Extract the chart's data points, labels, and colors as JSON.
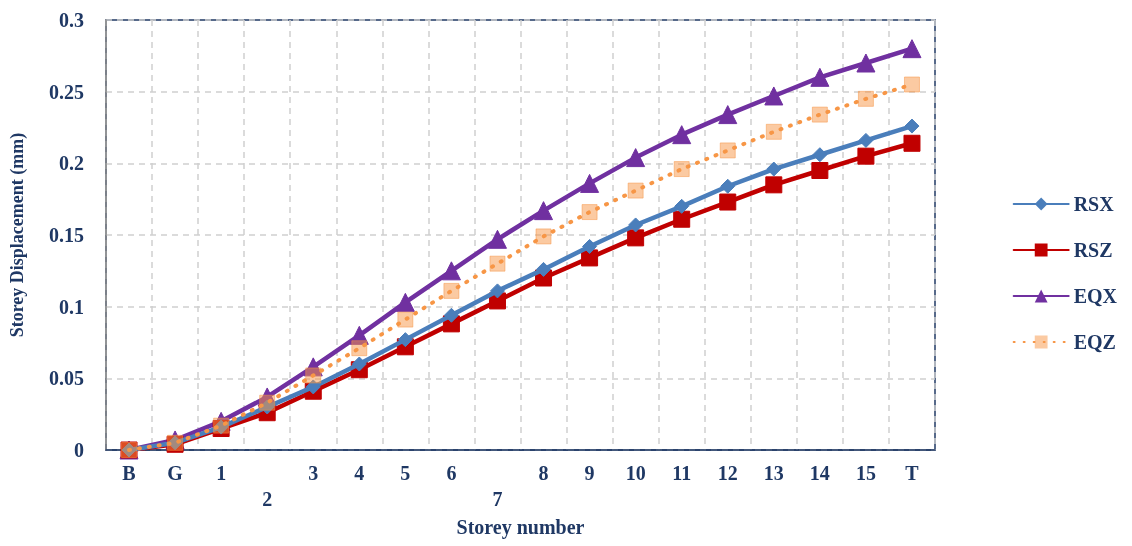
{
  "chart_data": {
    "type": "line",
    "xlabel": "Storey number",
    "ylabel": "Storey Displacement (mm)",
    "categories": [
      "B",
      "G",
      "1",
      "2",
      "3",
      "4",
      "5",
      "6",
      "7",
      "8",
      "9",
      "10",
      "11",
      "12",
      "13",
      "14",
      "15",
      "T"
    ],
    "ylim": [
      0,
      0.3
    ],
    "yticks": [
      0,
      0.05,
      0.1,
      0.15,
      0.2,
      0.25,
      0.3
    ],
    "grid": true,
    "legend": "right",
    "series": [
      {
        "name": "RSX",
        "color": "#4a7ebb",
        "marker": "diamond",
        "line_style": "solid",
        "values": [
          0,
          0.005,
          0.016,
          0.03,
          0.044,
          0.06,
          0.077,
          0.094,
          0.111,
          0.126,
          0.142,
          0.157,
          0.17,
          0.184,
          0.196,
          0.206,
          0.216,
          0.226
        ]
      },
      {
        "name": "RSZ",
        "color": "#c00000",
        "marker": "square",
        "line_style": "solid",
        "values": [
          0,
          0.004,
          0.015,
          0.026,
          0.041,
          0.056,
          0.072,
          0.088,
          0.104,
          0.12,
          0.134,
          0.148,
          0.161,
          0.173,
          0.185,
          0.195,
          0.205,
          0.214
        ]
      },
      {
        "name": "EQX",
        "color": "#7030a0",
        "marker": "triangle",
        "line_style": "solid",
        "values": [
          0,
          0.007,
          0.02,
          0.037,
          0.058,
          0.08,
          0.103,
          0.125,
          0.147,
          0.167,
          0.186,
          0.204,
          0.22,
          0.234,
          0.247,
          0.26,
          0.27,
          0.28
        ]
      },
      {
        "name": "EQZ",
        "color": "#f79646",
        "marker": "square",
        "line_style": "dotted",
        "values": [
          0,
          0.005,
          0.017,
          0.033,
          0.052,
          0.071,
          0.091,
          0.111,
          0.13,
          0.149,
          0.166,
          0.181,
          0.196,
          0.209,
          0.222,
          0.234,
          0.245,
          0.255
        ]
      }
    ]
  }
}
